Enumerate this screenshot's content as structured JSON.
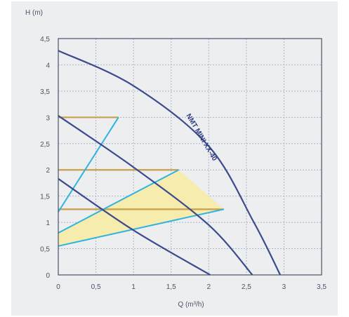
{
  "chart_data": {
    "type": "line",
    "xlabel": "Q (m³/h)",
    "ylabel": "H (m)",
    "xlim": [
      0,
      3.5
    ],
    "ylim": [
      0,
      4.5
    ],
    "x_ticks": [
      "0",
      "0,5",
      "1",
      "1,5",
      "2",
      "2,5",
      "3",
      "3,5"
    ],
    "y_ticks": [
      "0",
      "0,5",
      "1",
      "1,5",
      "2",
      "2,5",
      "3",
      "3,5",
      "4",
      "4,5"
    ],
    "grid": true,
    "curve_label": "NMT MINI XX-40",
    "pump_curves": [
      {
        "points": [
          [
            0,
            4.27
          ],
          [
            1.0,
            3.6
          ],
          [
            2.0,
            2.45
          ],
          [
            2.6,
            1.0
          ],
          [
            2.95,
            0
          ]
        ]
      },
      {
        "points": [
          [
            0,
            3.03
          ],
          [
            1.0,
            2.05
          ],
          [
            2.0,
            0.95
          ],
          [
            2.58,
            0
          ]
        ]
      },
      {
        "points": [
          [
            0,
            1.83
          ],
          [
            1.0,
            0.85
          ],
          [
            2.02,
            0
          ]
        ]
      }
    ],
    "constant_pressure_lines": [
      {
        "h": 3.0,
        "x": [
          0,
          0.8
        ]
      },
      {
        "h": 2.0,
        "x": [
          0,
          1.6
        ]
      },
      {
        "h": 1.25,
        "x": [
          0,
          2.2
        ]
      }
    ],
    "proportional_pressure_lines": [
      {
        "points": [
          [
            0,
            1.2
          ],
          [
            0.8,
            3.0
          ]
        ]
      },
      {
        "points": [
          [
            0,
            0.8
          ],
          [
            1.6,
            2.0
          ]
        ]
      },
      {
        "points": [
          [
            0,
            0.55
          ],
          [
            2.2,
            1.25
          ]
        ]
      }
    ],
    "operating_area": [
      [
        0,
        0.8
      ],
      [
        1.6,
        2.0
      ],
      [
        2.2,
        1.25
      ],
      [
        0,
        0.55
      ]
    ],
    "colors": {
      "pump_curve": "#3d4a8c",
      "constant_pressure": "#c9a04a",
      "proportional_pressure": "#2fb3e0",
      "area_fill": "#f6ecad",
      "grid": "#aab7c9",
      "axis": "#4a5368"
    }
  }
}
